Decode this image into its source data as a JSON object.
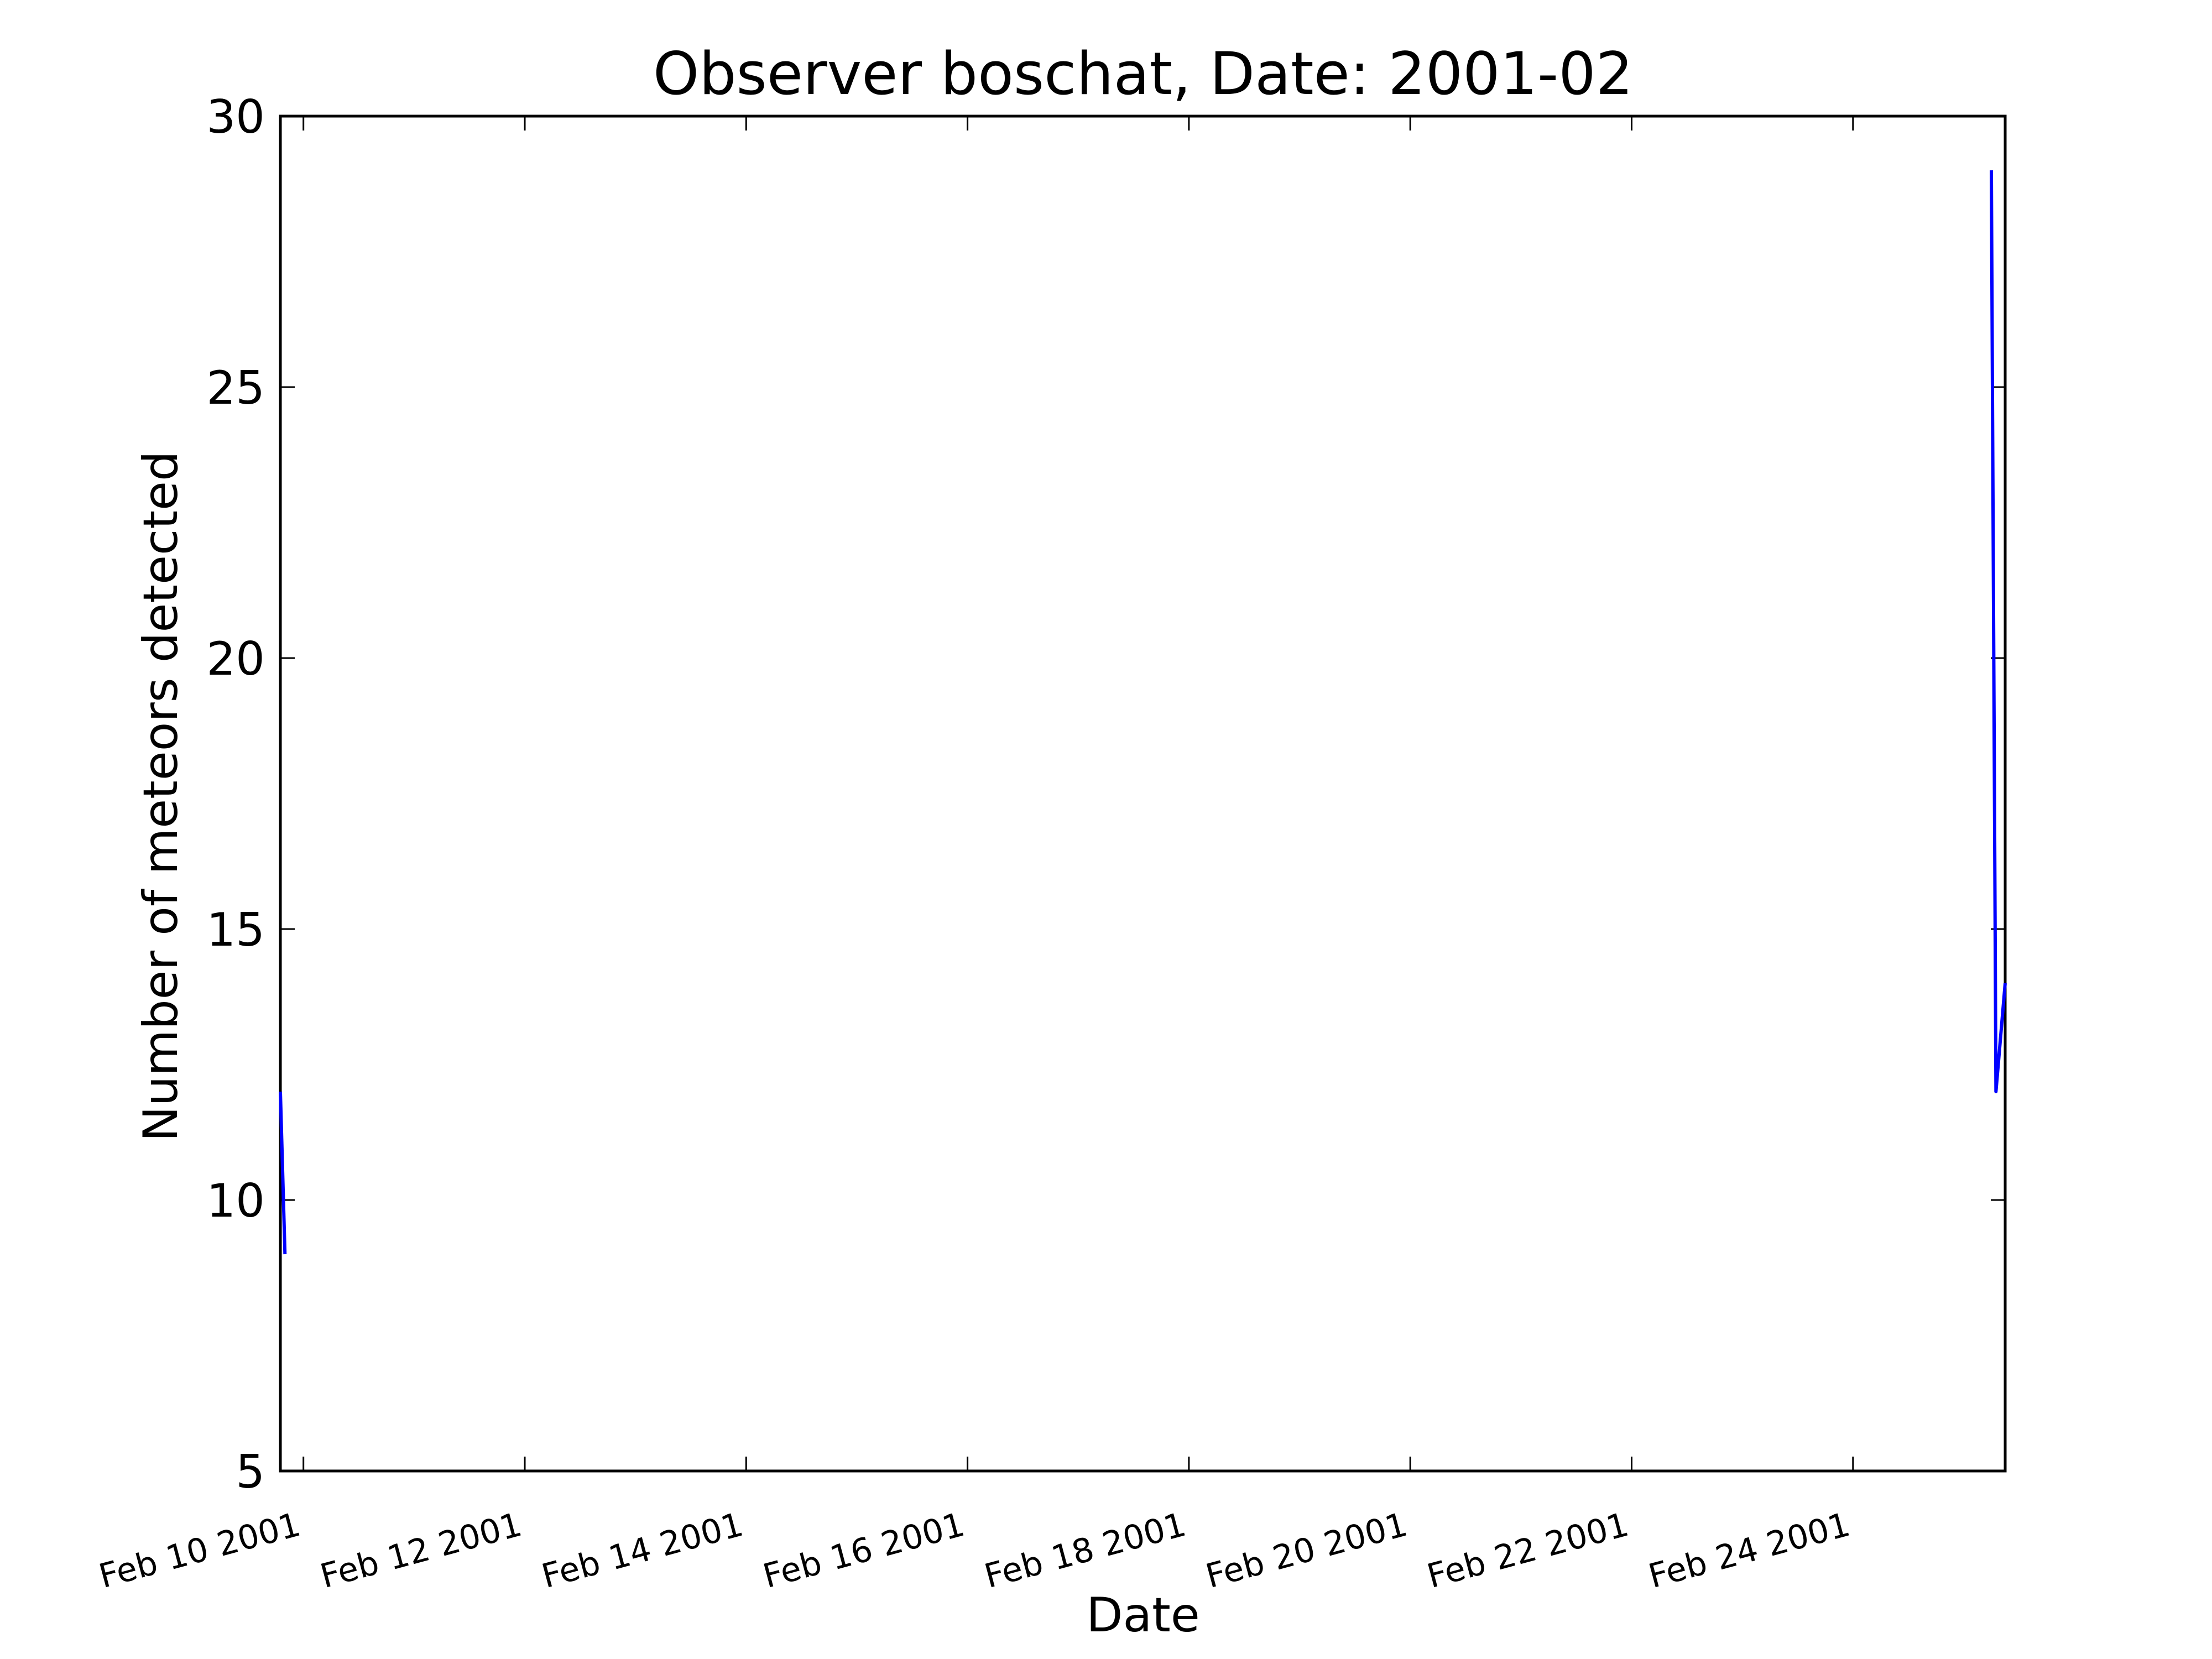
{
  "chart_data": {
    "type": "line",
    "title": "Observer boschat, Date: 2001-02",
    "xlabel": "Date",
    "ylabel": "Number of meteors detected",
    "x_axis_kind": "date",
    "xlim": [
      "2001-02-09 19:00",
      "2001-02-25 09:00"
    ],
    "ylim": [
      5,
      30
    ],
    "x_ticks": [
      "2001-02-10",
      "2001-02-12",
      "2001-02-14",
      "2001-02-16",
      "2001-02-18",
      "2001-02-20",
      "2001-02-22",
      "2001-02-24"
    ],
    "x_tick_labels": [
      "Feb 10 2001",
      "Feb 12 2001",
      "Feb 14 2001",
      "Feb 16 2001",
      "Feb 18 2001",
      "Feb 20 2001",
      "Feb 22 2001",
      "Feb 24 2001"
    ],
    "y_ticks": [
      5,
      10,
      15,
      20,
      25,
      30
    ],
    "y_tick_labels": [
      "5",
      "10",
      "15",
      "20",
      "25",
      "30"
    ],
    "grid": false,
    "legend": "none",
    "series": [
      {
        "color": "#0000ff",
        "segments": [
          [
            {
              "x": "2001-02-09 19:00",
              "y": 12
            },
            {
              "x": "2001-02-09 20:00",
              "y": 9
            }
          ],
          [
            {
              "x": "2001-02-25 06:00",
              "y": 29
            },
            {
              "x": "2001-02-25 07:00",
              "y": 12
            },
            {
              "x": "2001-02-25 09:00",
              "y": 14
            }
          ]
        ]
      }
    ]
  }
}
